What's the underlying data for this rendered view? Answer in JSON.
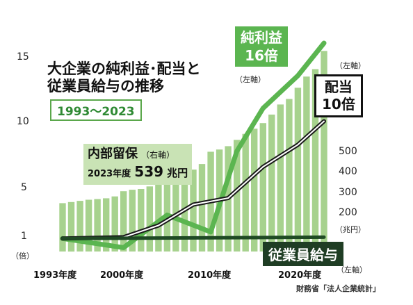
{
  "title_line1": "大企業の純利益･配当と",
  "title_line2": "従業員給与の推移",
  "period": "1993〜2023",
  "chart_data": {
    "type": "bar",
    "x": [
      1993,
      1994,
      1995,
      1996,
      1997,
      1998,
      1999,
      2000,
      2001,
      2002,
      2003,
      2004,
      2005,
      2006,
      2007,
      2008,
      2009,
      2010,
      2011,
      2012,
      2013,
      2014,
      2015,
      2016,
      2017,
      2018,
      2019,
      2020,
      2021,
      2022,
      2023
    ],
    "x_ticks": [
      "1993年度",
      "2000年度",
      "2010年度",
      "2020年度"
    ],
    "y_left_ticks": [
      "15",
      "10",
      "5",
      "1"
    ],
    "y_left_unit": "（倍）",
    "y_left_range": [
      0,
      16.5
    ],
    "y_right_ticks": [
      "500",
      "400",
      "300",
      "200"
    ],
    "y_right_unit": "（兆円）",
    "y_right_range": [
      0,
      560
    ],
    "series": [
      {
        "name": "内部留保",
        "type": "bar",
        "axis": "right",
        "color": "#a7d28e",
        "values": [
          130,
          133,
          136,
          139,
          141,
          143,
          148,
          162,
          166,
          168,
          175,
          185,
          194,
          206,
          213,
          220,
          235,
          268,
          274,
          283,
          300,
          316,
          330,
          345,
          368,
          395,
          410,
          440,
          470,
          490,
          539
        ]
      },
      {
        "name": "純利益",
        "type": "line",
        "axis": "left",
        "color": "#5bb550",
        "x": [
          1993,
          2000,
          2005,
          2010,
          2013,
          2016,
          2020,
          2023
        ],
        "values": [
          1,
          0.3,
          2.8,
          1.5,
          7.7,
          11,
          13.5,
          16
        ]
      },
      {
        "name": "配当",
        "type": "line",
        "axis": "left",
        "color": "#1a1a1a",
        "x": [
          1993,
          2000,
          2004,
          2008,
          2012,
          2016,
          2020,
          2023
        ],
        "values": [
          1,
          1.1,
          2,
          3.6,
          4.1,
          6.5,
          8.2,
          10
        ]
      },
      {
        "name": "従業員給与",
        "type": "line",
        "axis": "left",
        "color": "#1f4a24",
        "x": [
          1993,
          2023
        ],
        "values": [
          1,
          1.1
        ]
      }
    ]
  },
  "annotations": {
    "net_income_label": "純利益",
    "net_income_value": "16倍",
    "net_income_axis": "（左軸）",
    "dividend_label": "配当",
    "dividend_value": "10倍",
    "dividend_axis": "（左軸）",
    "retained_label": "内部留保",
    "retained_axis": "（右軸）",
    "retained_year": "2023年度",
    "retained_value": "539",
    "retained_unit": "兆円",
    "wage_label": "従業員給与",
    "wage_axis": "（左軸）"
  },
  "source": "財務省「法人企業統計」"
}
